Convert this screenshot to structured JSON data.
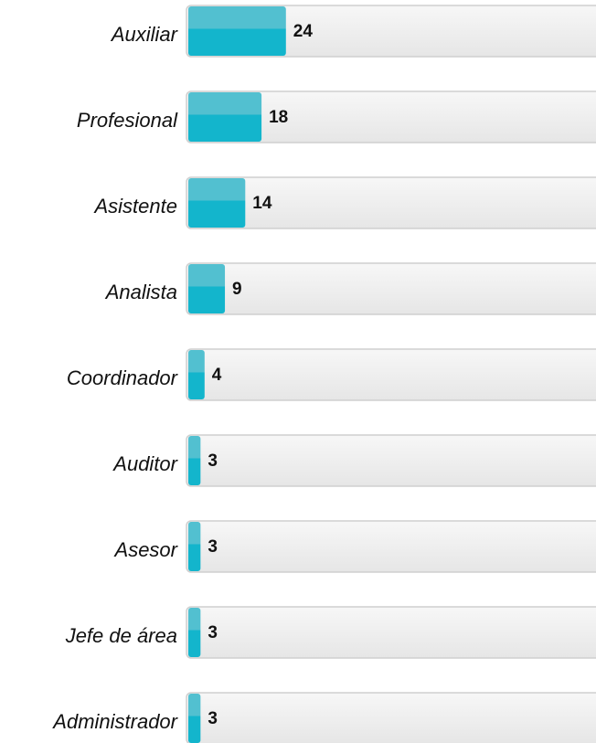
{
  "chart_data": {
    "type": "hbar",
    "categories": [
      "Auxiliar",
      "Profesional",
      "Asistente",
      "Analista",
      "Coordinador",
      "Auditor",
      "Asesor",
      "Jefe de área",
      "Administrador"
    ],
    "values": [
      24,
      18,
      14,
      9,
      4,
      3,
      3,
      3,
      3
    ],
    "color": "#13b5cc",
    "xlim": [
      0,
      100
    ]
  }
}
